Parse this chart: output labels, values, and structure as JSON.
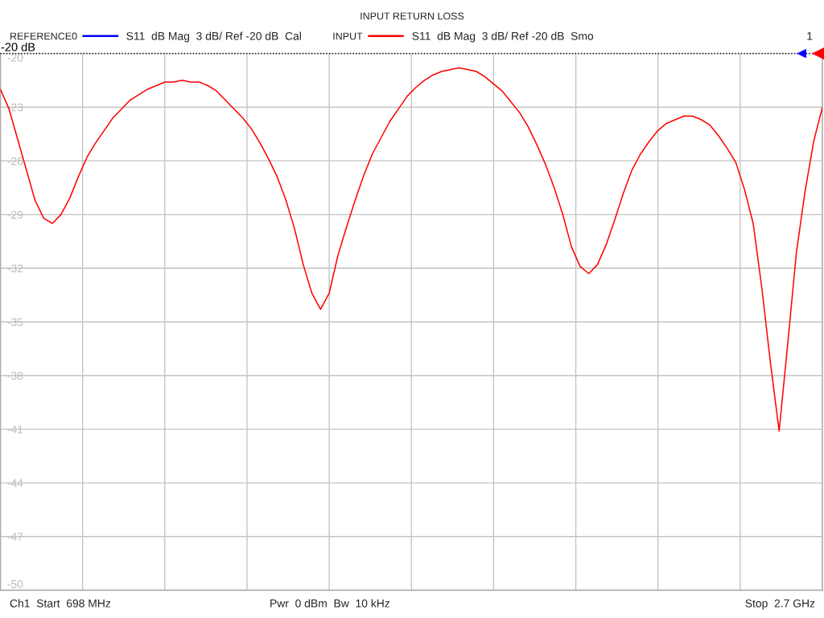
{
  "chart_data": {
    "type": "line",
    "title": "INPUT RETURN LOSS",
    "categories": [
      null,
      null,
      null,
      null,
      null,
      null,
      null,
      null,
      null,
      null,
      null,
      null,
      null,
      null,
      null,
      null,
      null,
      null,
      null,
      null,
      null,
      null,
      null,
      null,
      null,
      null,
      null,
      null,
      null,
      null,
      null,
      null,
      null,
      null,
      null,
      null,
      null,
      null,
      null,
      null,
      null,
      null,
      null,
      null,
      null,
      null,
      null,
      null,
      null,
      null,
      null,
      null,
      null,
      null,
      null,
      null,
      null,
      null,
      null,
      null,
      null,
      null,
      null,
      null,
      null,
      null,
      null,
      null,
      null,
      null,
      null,
      null,
      null,
      null,
      null,
      null,
      null,
      null,
      null,
      null,
      null,
      null,
      null,
      null,
      null,
      null,
      null,
      null,
      null,
      null,
      null,
      null,
      null,
      null,
      null,
      null
    ],
    "series": [
      {
        "name": "REFERENCE0",
        "color": "#0000ff",
        "values": [
          null,
          null,
          null,
          null,
          null,
          null,
          null,
          null,
          null,
          null,
          null,
          null,
          null,
          null,
          null,
          null,
          null,
          null,
          null,
          null,
          null,
          null,
          null,
          null,
          null,
          null,
          null,
          null,
          null,
          null,
          null,
          null,
          null,
          null,
          null,
          null,
          null,
          null,
          null,
          null,
          null,
          null,
          null,
          null,
          null,
          null,
          null,
          null,
          null,
          null,
          null,
          null,
          null,
          null,
          null,
          null,
          null,
          null,
          null,
          null,
          null,
          null,
          null,
          null,
          null,
          null,
          null,
          null,
          null,
          null,
          null,
          null,
          null,
          null,
          null,
          null,
          null,
          null,
          null,
          null,
          null,
          null,
          null,
          null,
          null,
          null,
          null,
          null,
          null,
          null,
          null,
          null,
          null,
          null,
          null,
          null
        ]
      },
      {
        "name": "INPUT",
        "color": "#ff0000",
        "values": [
          -22.0,
          -23.1,
          -24.8,
          -26.5,
          -28.2,
          -29.2,
          -29.5,
          -29.0,
          -28.1,
          -26.9,
          -25.8,
          -25.0,
          -24.3,
          -23.6,
          -23.1,
          -22.6,
          -22.3,
          -22.0,
          -21.8,
          -21.6,
          -21.6,
          -21.5,
          -21.6,
          -21.6,
          -21.8,
          -22.1,
          -22.6,
          -23.1,
          -23.6,
          -24.2,
          -25.0,
          -25.9,
          -26.9,
          -28.2,
          -29.8,
          -31.8,
          -33.4,
          -34.3,
          -33.4,
          -31.3,
          -29.7,
          -28.2,
          -26.8,
          -25.6,
          -24.7,
          -23.8,
          -23.1,
          -22.4,
          -21.9,
          -21.5,
          -21.2,
          -21.0,
          -20.9,
          -20.8,
          -20.9,
          -21.0,
          -21.3,
          -21.7,
          -22.1,
          -22.7,
          -23.3,
          -24.1,
          -25.1,
          -26.2,
          -27.5,
          -29.0,
          -30.8,
          -31.9,
          -32.3,
          -31.8,
          -30.7,
          -29.3,
          -27.8,
          -26.5,
          -25.6,
          -24.9,
          -24.3,
          -23.9,
          -23.7,
          -23.5,
          -23.5,
          -23.7,
          -24.0,
          -24.6,
          -25.3,
          -26.1,
          -27.6,
          -29.5,
          -33.1,
          -37.3,
          -41.1,
          -36.2,
          -31.1,
          -27.7,
          -24.9,
          -23.0
        ]
      }
    ],
    "ylim": [
      -50,
      -20
    ],
    "yticks": [
      -20,
      -23,
      -26,
      -29,
      -32,
      -35,
      -38,
      -41,
      -44,
      -47,
      -50
    ],
    "ref_lines": [
      {
        "axis": "y",
        "value": -20,
        "label": "-20 dB",
        "color": "#000000",
        "line_style": "dotted"
      }
    ],
    "annotations": [
      "S11  dB Mag  3 dB/ Ref -20 dB  Cal",
      "S11  dB Mag  3 dB/ Ref -20 dB  Smo",
      "1",
      "Ch1  Start  698 MHz",
      "Pwr  0 dBm  Bw  10 kHz",
      "Stop  2.7 GHz"
    ],
    "grid": true,
    "legend": "top",
    "tick_labels": "y"
  }
}
